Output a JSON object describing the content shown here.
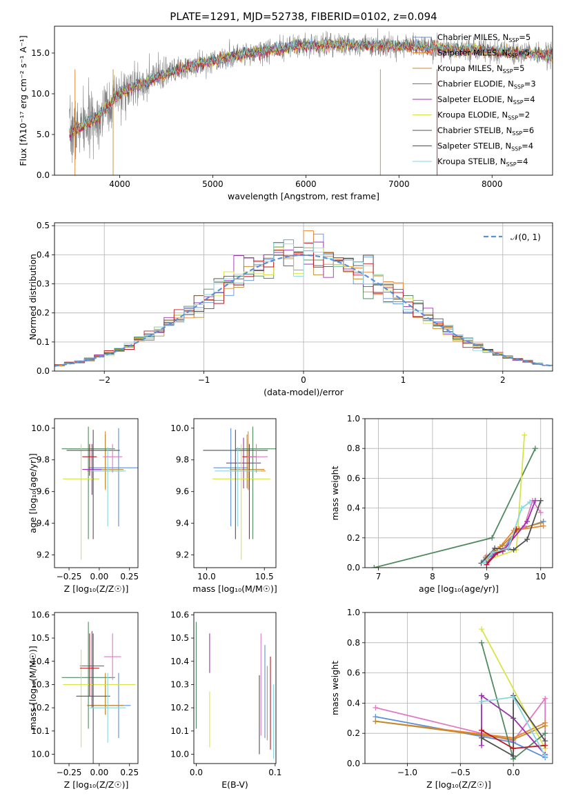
{
  "figure_title": "PLATE=1291, MJD=52738, FIBERID=0102, z=0.094",
  "models": [
    {
      "key": "chab_miles",
      "name": "Chabrier MILES",
      "nssp": "5",
      "color": "#5b8fdb"
    },
    {
      "key": "salp_miles",
      "name": "Salpeter MILES",
      "nssp": "5",
      "color": "#e9832c"
    },
    {
      "key": "krou_miles",
      "name": "Kroupa MILES",
      "nssp": "5",
      "color": "#c08a2c"
    },
    {
      "key": "chab_elodie",
      "name": "Chabrier ELODIE",
      "nssp": "3",
      "color": "#4f8a5e"
    },
    {
      "key": "salp_elodie",
      "name": "Salpeter ELODIE",
      "nssp": "4",
      "color": "#9b30b0"
    },
    {
      "key": "krou_elodie",
      "name": "Kroupa ELODIE",
      "nssp": "2",
      "color": "#d8e446"
    },
    {
      "key": "chab_stelib",
      "name": "Chabrier STELIB",
      "nssp": "6",
      "color": "#505050"
    },
    {
      "key": "salp_stelib",
      "name": "Salpeter STELIB",
      "nssp": "4",
      "color": "#c0161f"
    },
    {
      "key": "krou_stelib",
      "name": "Kroupa STELIB",
      "nssp": "4",
      "color": "#86d6e0"
    }
  ],
  "nssp_prefix": "N",
  "nssp_sub": "SSP",
  "chart_data": [
    {
      "id": "spectrum",
      "type": "line",
      "xlabel": "wavelength [Angstrom, rest frame]",
      "ylabel": "Flux [fλ10⁻¹⁷ erg cm⁻² s⁻¹ A⁻¹]",
      "xlim": [
        3300,
        8650
      ],
      "ylim": [
        0,
        18.3
      ],
      "xticks": [
        4000,
        5000,
        6000,
        7000,
        8000
      ],
      "yticks": [
        0,
        5,
        10,
        15
      ],
      "grid": false,
      "legend": "upper-right",
      "data_color": "#808080",
      "continuum": [
        [
          3460,
          5.2
        ],
        [
          3600,
          6.0
        ],
        [
          3750,
          7.0
        ],
        [
          3900,
          8.8
        ],
        [
          4000,
          10.0
        ],
        [
          4200,
          11.0
        ],
        [
          4400,
          12.0
        ],
        [
          4600,
          12.8
        ],
        [
          4800,
          13.5
        ],
        [
          5000,
          14.1
        ],
        [
          5300,
          14.8
        ],
        [
          5600,
          15.3
        ],
        [
          5900,
          15.8
        ],
        [
          6200,
          16.0
        ],
        [
          6500,
          16.0
        ],
        [
          6800,
          15.9
        ],
        [
          7100,
          15.9
        ],
        [
          7400,
          15.6
        ],
        [
          7700,
          15.4
        ],
        [
          8000,
          15.2
        ],
        [
          8300,
          15.0
        ],
        [
          8650,
          14.8
        ]
      ],
      "model_offsets": [
        0.1,
        -0.05,
        0.02,
        0.08,
        -0.12,
        0.0,
        0.15,
        -0.1,
        0.05
      ]
    },
    {
      "id": "residuals",
      "type": "histogram",
      "xlabel": "(data-model)/error",
      "ylabel": "Normed distribution",
      "xlim": [
        -2.5,
        2.5
      ],
      "ylim": [
        0,
        0.51
      ],
      "xticks": [
        -2,
        -1,
        0,
        1,
        2
      ],
      "yticks": [
        0.0,
        0.1,
        0.2,
        0.3,
        0.4,
        0.5
      ],
      "bin_width": 0.1,
      "grid": true,
      "legend": "upper-right",
      "reference": {
        "label": "𝒩(0, 1)",
        "color": "#5b8fdb"
      }
    },
    {
      "id": "age_vs_Z",
      "type": "errorbar",
      "xlabel": "Z [log₁₀(Z/Z☉)]",
      "ylabel": "age  [log₁₀(age/yr)]",
      "xlim": [
        -0.37,
        0.32
      ],
      "ylim": [
        9.12,
        10.06
      ],
      "xticks": [
        -0.25,
        0.0,
        0.25
      ],
      "yticks": [
        9.2,
        9.4,
        9.6,
        9.8,
        10.0
      ],
      "tick_decimals": [
        2,
        1
      ],
      "points": [
        {
          "model": 0,
          "x": 0.16,
          "xerr": [
            0.25,
            0.25
          ],
          "y": 9.75,
          "yerr": [
            0.37,
            0.25
          ]
        },
        {
          "model": 1,
          "x": 0.05,
          "xerr": [
            0.15,
            0.15
          ],
          "y": 9.73,
          "yerr": [
            0.12,
            0.25
          ]
        },
        {
          "model": 2,
          "x": 0.05,
          "xerr": [
            0.15,
            0.15
          ],
          "y": 9.74,
          "yerr": [
            0.12,
            0.22
          ]
        },
        {
          "model": 3,
          "x": -0.09,
          "xerr": [
            0.22,
            0.22
          ],
          "y": 9.87,
          "yerr": [
            0.57,
            0.14
          ]
        },
        {
          "model": 4,
          "x": -0.06,
          "xerr": [
            0.08,
            0.08
          ],
          "y": 9.74,
          "yerr": [
            0.16,
            0.16
          ]
        },
        {
          "model": 5,
          "x": -0.15,
          "xerr": [
            0.15,
            0.15
          ],
          "y": 9.68,
          "yerr": [
            0.51,
            0.22
          ]
        },
        {
          "model": 6,
          "x": -0.05,
          "xerr": [
            0.22,
            0.22
          ],
          "y": 9.86,
          "yerr": [
            0.56,
            0.13
          ]
        },
        {
          "model": 7,
          "x": -0.08,
          "xerr": [
            0.06,
            0.06
          ],
          "y": 9.82,
          "yerr": [
            0.12,
            0.08
          ]
        },
        {
          "model": 8,
          "x": 0.07,
          "xerr": [
            0.15,
            0.15
          ],
          "y": 9.73,
          "yerr": [
            0.35,
            0.15
          ]
        },
        {
          "model": 9,
          "x": 0.11,
          "xerr": [
            0.08,
            0.08
          ],
          "y": 9.82,
          "yerr": [
            0.1,
            0.08
          ]
        }
      ]
    },
    {
      "id": "age_vs_mass",
      "type": "errorbar",
      "xlabel": "mass [log₁₀(M/M☉)]",
      "ylabel": "",
      "xlim": [
        9.89,
        10.6
      ],
      "ylim": [
        9.12,
        10.06
      ],
      "xticks": [
        10.0,
        10.5
      ],
      "yticks": [
        9.2,
        9.4,
        9.6,
        9.8,
        10.0
      ],
      "tick_decimals": [
        1,
        1
      ],
      "points": [
        {
          "model": 0,
          "x": 10.21,
          "xerr": [
            0.15,
            0.15
          ],
          "y": 9.75,
          "yerr": [
            0.37,
            0.25
          ]
        },
        {
          "model": 1,
          "x": 10.36,
          "xerr": [
            0.15,
            0.15
          ],
          "y": 9.73,
          "yerr": [
            0.12,
            0.25
          ]
        },
        {
          "model": 2,
          "x": 10.35,
          "xerr": [
            0.15,
            0.15
          ],
          "y": 9.74,
          "yerr": [
            0.12,
            0.22
          ]
        },
        {
          "model": 3,
          "x": 10.4,
          "xerr": [
            0.15,
            0.25
          ],
          "y": 9.87,
          "yerr": [
            0.57,
            0.14
          ]
        },
        {
          "model": 4,
          "x": 10.32,
          "xerr": [
            0.15,
            0.15
          ],
          "y": 9.78,
          "yerr": [
            0.16,
            0.16
          ]
        },
        {
          "model": 5,
          "x": 10.3,
          "xerr": [
            0.25,
            0.25
          ],
          "y": 9.68,
          "yerr": [
            0.51,
            0.22
          ]
        },
        {
          "model": 6,
          "x": 10.25,
          "xerr": [
            0.28,
            0.28
          ],
          "y": 9.86,
          "yerr": [
            0.56,
            0.13
          ]
        },
        {
          "model": 7,
          "x": 10.37,
          "xerr": [
            0.06,
            0.06
          ],
          "y": 9.82,
          "yerr": [
            0.52,
            0.08
          ]
        },
        {
          "model": 8,
          "x": 10.27,
          "xerr": [
            0.2,
            0.2
          ],
          "y": 9.73,
          "yerr": [
            0.35,
            0.15
          ]
        },
        {
          "model": 9,
          "x": 10.43,
          "xerr": [
            0.08,
            0.1
          ],
          "y": 9.82,
          "yerr": [
            0.1,
            0.08
          ]
        }
      ]
    },
    {
      "id": "weight_vs_age",
      "type": "line",
      "xlabel": "age  [log₁₀(age/yr)]",
      "ylabel": "mass weight",
      "xlim": [
        6.75,
        10.22
      ],
      "ylim": [
        0,
        1.0
      ],
      "xticks": [
        7,
        8,
        9,
        10
      ],
      "yticks": [
        0.0,
        0.2,
        0.4,
        0.6,
        0.8,
        1.0
      ],
      "tick_decimals": [
        0,
        1
      ],
      "grid": true,
      "series": [
        {
          "model": 3,
          "x": [
            6.92,
            9.1,
            9.9
          ],
          "y": [
            0.0,
            0.2,
            0.8
          ]
        },
        {
          "model": 5,
          "x": [
            9.0,
            9.55,
            9.7
          ],
          "y": [
            0.05,
            0.12,
            0.89
          ]
        },
        {
          "model": 0,
          "x": [
            8.95,
            9.3,
            9.55,
            10.05
          ],
          "y": [
            0.05,
            0.12,
            0.25,
            0.31
          ]
        },
        {
          "model": 1,
          "x": [
            9.0,
            9.25,
            9.5,
            10.05
          ],
          "y": [
            0.06,
            0.14,
            0.25,
            0.28
          ]
        },
        {
          "model": 2,
          "x": [
            8.98,
            9.3,
            9.6,
            10.0
          ],
          "y": [
            0.07,
            0.15,
            0.26,
            0.3
          ]
        },
        {
          "model": 9,
          "x": [
            9.0,
            9.3,
            9.7,
            9.85,
            10.0
          ],
          "y": [
            0.08,
            0.12,
            0.28,
            0.45,
            0.37
          ]
        },
        {
          "model": 4,
          "x": [
            9.0,
            9.15,
            9.3,
            9.75,
            9.9
          ],
          "y": [
            0.03,
            0.09,
            0.11,
            0.31,
            0.45
          ]
        },
        {
          "model": 6,
          "x": [
            8.9,
            9.15,
            9.5,
            9.75,
            10.0
          ],
          "y": [
            0.03,
            0.13,
            0.12,
            0.19,
            0.45
          ]
        },
        {
          "model": 7,
          "x": [
            9.0,
            9.2,
            9.4,
            9.55
          ],
          "y": [
            0.02,
            0.1,
            0.13,
            0.26
          ]
        },
        {
          "model": 8,
          "x": [
            8.95,
            9.1,
            9.4,
            9.65,
            9.8
          ],
          "y": [
            0.03,
            0.1,
            0.13,
            0.4,
            0.44
          ]
        }
      ]
    },
    {
      "id": "mass_vs_Z",
      "type": "errorbar",
      "xlabel": "Z [log₁₀(Z/Z☉)]",
      "ylabel": "mass [log₁₀(M/M☉)]",
      "xlim": [
        -0.37,
        0.32
      ],
      "ylim": [
        9.96,
        10.61
      ],
      "xticks": [
        -0.25,
        0.0,
        0.25
      ],
      "yticks": [
        10.0,
        10.1,
        10.2,
        10.3,
        10.4,
        10.5,
        10.6
      ],
      "tick_decimals": [
        2,
        1
      ],
      "points": [
        {
          "model": 0,
          "x": 0.16,
          "xerr": [
            0.25,
            0.1
          ],
          "y": 10.21,
          "yerr": [
            0.14,
            0.14
          ]
        },
        {
          "model": 1,
          "x": 0.05,
          "xerr": [
            0.15,
            0.15
          ],
          "y": 10.21,
          "yerr": [
            0.04,
            0.11
          ]
        },
        {
          "model": 2,
          "x": 0.05,
          "xerr": [
            0.15,
            0.15
          ],
          "y": 10.21,
          "yerr": [
            0.04,
            0.14
          ]
        },
        {
          "model": 3,
          "x": -0.09,
          "xerr": [
            0.22,
            0.22
          ],
          "y": 10.33,
          "yerr": [
            0.22,
            0.24
          ]
        },
        {
          "model": 4,
          "x": -0.06,
          "xerr": [
            0.1,
            0.1
          ],
          "y": 10.38,
          "yerr": [
            0.18,
            0.15
          ]
        },
        {
          "model": 5,
          "x": -0.15,
          "xerr": [
            0.15,
            0.45
          ],
          "y": 10.3,
          "yerr": [
            0.27,
            0.15
          ]
        },
        {
          "model": 6,
          "x": -0.05,
          "xerr": [
            0.14,
            0.14
          ],
          "y": 10.25,
          "yerr": [
            0.29,
            0.27
          ]
        },
        {
          "model": 7,
          "x": -0.08,
          "xerr": [
            0.08,
            0.08
          ],
          "y": 10.37,
          "yerr": [
            0.12,
            0.15
          ]
        },
        {
          "model": 8,
          "x": 0.07,
          "xerr": [
            0.15,
            0.15
          ],
          "y": 10.2,
          "yerr": [
            0.15,
            0.15
          ]
        },
        {
          "model": 9,
          "x": 0.11,
          "xerr": [
            0.07,
            0.07
          ],
          "y": 10.42,
          "yerr": [
            0.1,
            0.1
          ]
        }
      ]
    },
    {
      "id": "mass_vs_ebv",
      "type": "errorbar",
      "xlabel": "E(B-V)",
      "ylabel": "",
      "xlim": [
        -0.003,
        0.101
      ],
      "ylim": [
        9.96,
        10.61
      ],
      "xticks": [
        0.0,
        0.1
      ],
      "yticks": [
        10.0,
        10.1,
        10.2,
        10.3,
        10.4,
        10.5,
        10.6
      ],
      "tick_decimals": [
        1,
        1
      ],
      "points": [
        {
          "model": 3,
          "x": 0.0,
          "xerr": [
            0,
            0
          ],
          "y": 10.33,
          "yerr": [
            0.22,
            0.24
          ]
        },
        {
          "model": 4,
          "x": 0.017,
          "xerr": [
            0,
            0
          ],
          "y": 10.44,
          "yerr": [
            0.09,
            0.08
          ]
        },
        {
          "model": 5,
          "x": 0.017,
          "xerr": [
            0,
            0
          ],
          "y": 10.2,
          "yerr": [
            0.17,
            0.07
          ]
        },
        {
          "model": 6,
          "x": 0.08,
          "xerr": [
            0,
            0
          ],
          "y": 10.17,
          "yerr": [
            0.17,
            0.17
          ]
        },
        {
          "model": 9,
          "x": 0.082,
          "xerr": [
            0,
            0
          ],
          "y": 10.3,
          "yerr": [
            0.22,
            0.22
          ]
        },
        {
          "model": 0,
          "x": 0.087,
          "xerr": [
            0,
            0
          ],
          "y": 10.27,
          "yerr": [
            0.2,
            0.2
          ]
        },
        {
          "model": 1,
          "x": 0.09,
          "xerr": [
            0,
            0
          ],
          "y": 10.22,
          "yerr": [
            0.16,
            0.16
          ]
        },
        {
          "model": 7,
          "x": 0.094,
          "xerr": [
            0,
            0
          ],
          "y": 10.22,
          "yerr": [
            0.2,
            0.2
          ]
        },
        {
          "model": 8,
          "x": 0.098,
          "xerr": [
            0,
            0
          ],
          "y": 10.14,
          "yerr": [
            0.16,
            0.16
          ]
        }
      ]
    },
    {
      "id": "weight_vs_Z",
      "type": "line",
      "xlabel": "Z [log₁₀(Z/Z☉)]",
      "ylabel": "mass weight",
      "xlim": [
        -1.4,
        0.37
      ],
      "ylim": [
        0,
        1.0
      ],
      "xticks": [
        -1.0,
        -0.5,
        0.0
      ],
      "yticks": [
        0.0,
        0.2,
        0.4,
        0.6,
        0.8,
        1.0
      ],
      "tick_decimals": [
        1,
        1
      ],
      "grid": true,
      "series": [
        {
          "model": 9,
          "x": [
            -1.3,
            0.0,
            0.3,
            0.3
          ],
          "y": [
            0.37,
            0.15,
            0.43,
            0.1
          ]
        },
        {
          "model": 0,
          "x": [
            -1.3,
            0.0,
            0.3
          ],
          "y": [
            0.31,
            0.14,
            0.04
          ]
        },
        {
          "model": 1,
          "x": [
            -1.3,
            0.0,
            0.3
          ],
          "y": [
            0.28,
            0.17,
            0.27
          ]
        },
        {
          "model": 2,
          "x": [
            -1.3,
            0.0,
            0.3
          ],
          "y": [
            0.28,
            0.16,
            0.25
          ]
        },
        {
          "model": 5,
          "x": [
            -0.3,
            0.3,
            0.3
          ],
          "y": [
            0.89,
            0.1,
            0.1
          ]
        },
        {
          "model": 3,
          "x": [
            -0.3,
            0.0,
            0.3
          ],
          "y": [
            0.8,
            0.03,
            0.2
          ]
        },
        {
          "model": 4,
          "x": [
            -0.3,
            -0.3,
            0.0,
            0.3
          ],
          "y": [
            0.12,
            0.45,
            0.3,
            0.06
          ]
        },
        {
          "model": 6,
          "x": [
            -0.3,
            0.0,
            0.0,
            0.3
          ],
          "y": [
            0.17,
            0.05,
            0.45,
            0.15
          ]
        },
        {
          "model": 7,
          "x": [
            -0.3,
            0.0,
            0.3
          ],
          "y": [
            0.22,
            0.1,
            0.12
          ]
        },
        {
          "model": 8,
          "x": [
            -0.3,
            0.0,
            0.3
          ],
          "y": [
            0.41,
            0.44,
            0.05
          ]
        }
      ]
    }
  ]
}
